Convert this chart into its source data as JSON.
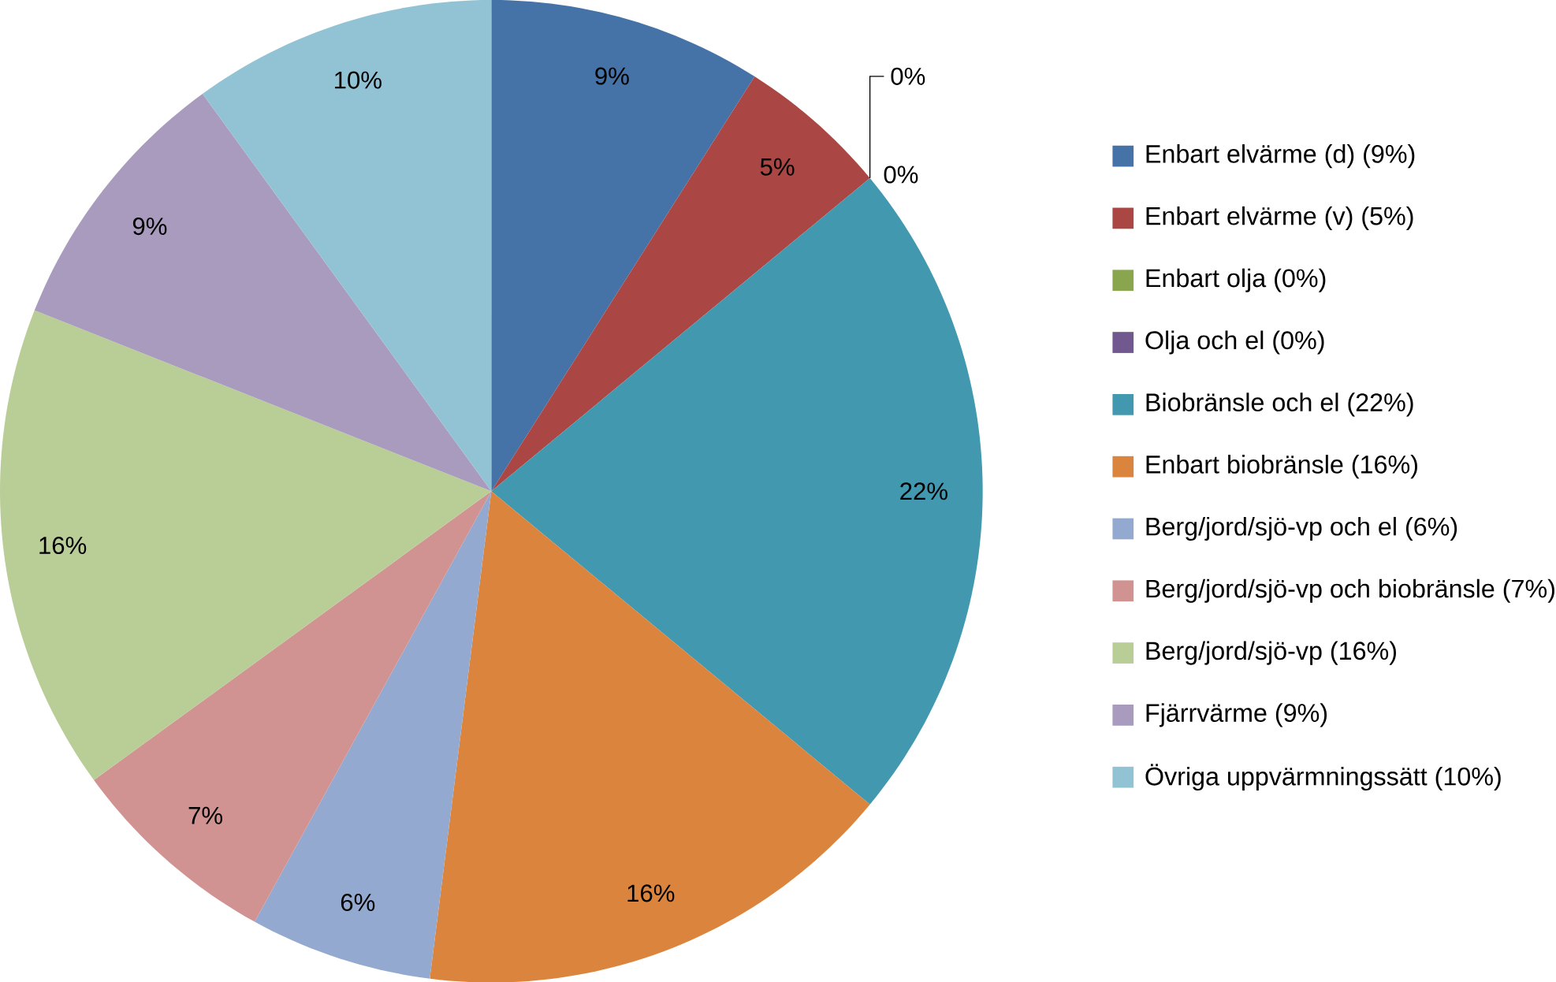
{
  "chart_data": {
    "type": "pie",
    "categories": [
      "Enbart elvärme (d) (9%)",
      "Enbart elvärme (v) (5%)",
      "Enbart olja (0%)",
      "Olja och el (0%)",
      "Biobränsle och el (22%)",
      "Enbart biobränsle (16%)",
      "Berg/jord/sjö-vp och el (6%)",
      "Berg/jord/sjö-vp och biobränsle (7%)",
      "Berg/jord/sjö-vp (16%)",
      "Fjärrvärme (9%)",
      "Övriga uppvärmningssätt  (10%)"
    ],
    "values": [
      9,
      5,
      0,
      0,
      22,
      16,
      6,
      7,
      16,
      9,
      10
    ],
    "value_labels": [
      "9%",
      "5%",
      "0%",
      "0%",
      "22%",
      "16%",
      "6%",
      "7%",
      "16%",
      "9%",
      "10%"
    ],
    "colors": [
      "#4572a7",
      "#aa4643",
      "#89a54e",
      "#71588f",
      "#4198af",
      "#db843d",
      "#93a9cf",
      "#d19392",
      "#b9cd96",
      "#a99bbd",
      "#92c3d4"
    ],
    "legend": "right"
  }
}
